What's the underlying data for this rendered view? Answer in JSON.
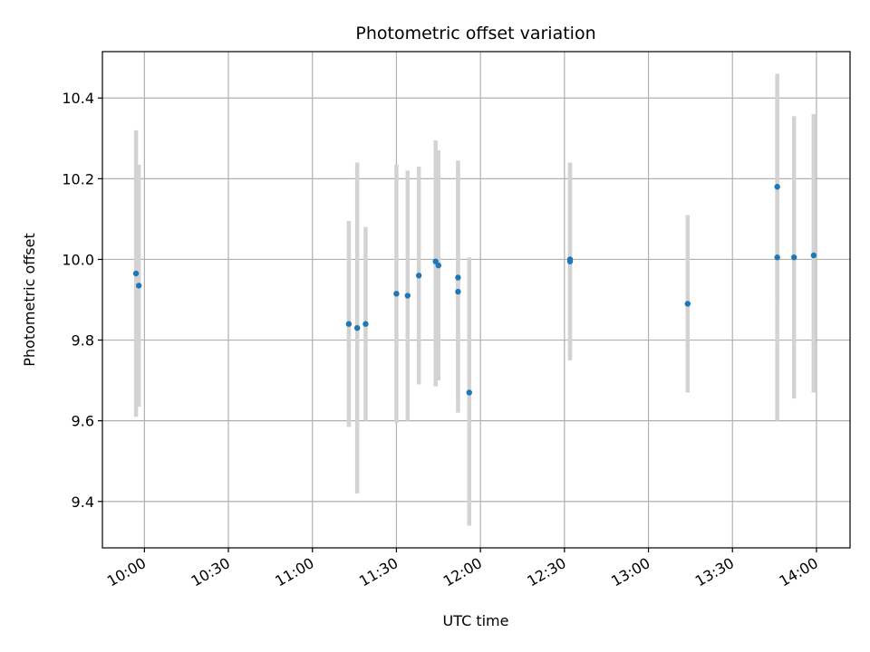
{
  "chart_data": {
    "type": "scatter",
    "title": "Photometric offset variation",
    "xlabel": "UTC time",
    "ylabel": "Photometric offset",
    "x_ticks": [
      "10:00",
      "10:30",
      "11:00",
      "11:30",
      "12:00",
      "12:30",
      "13:00",
      "13:30",
      "14:00"
    ],
    "y_ticks": [
      "9.4",
      "9.6",
      "9.8",
      "10.0",
      "10.2",
      "10.4"
    ],
    "xlim": [
      "09:45",
      "14:12"
    ],
    "ylim": [
      9.285,
      10.515
    ],
    "grid": true,
    "point_color": "#1f77b4",
    "errorbar_color": "#d3d3d3",
    "series": [
      {
        "points": [
          {
            "x": "09:57",
            "y": 9.965,
            "ylow": 9.61,
            "yhigh": 10.32
          },
          {
            "x": "09:58",
            "y": 9.935,
            "ylow": 9.635,
            "yhigh": 10.235
          },
          {
            "x": "11:13",
            "y": 9.84,
            "ylow": 9.585,
            "yhigh": 10.095
          },
          {
            "x": "11:16",
            "y": 9.83,
            "ylow": 9.42,
            "yhigh": 10.24
          },
          {
            "x": "11:19",
            "y": 9.84,
            "ylow": 9.6,
            "yhigh": 10.08
          },
          {
            "x": "11:30",
            "y": 9.915,
            "ylow": 9.595,
            "yhigh": 10.235
          },
          {
            "x": "11:34",
            "y": 9.91,
            "ylow": 9.6,
            "yhigh": 10.22
          },
          {
            "x": "11:38",
            "y": 9.96,
            "ylow": 9.69,
            "yhigh": 10.23
          },
          {
            "x": "11:44",
            "y": 9.995,
            "ylow": 9.685,
            "yhigh": 10.295
          },
          {
            "x": "11:45",
            "y": 9.985,
            "ylow": 9.7,
            "yhigh": 10.27
          },
          {
            "x": "11:52",
            "y": 9.955,
            "ylow": 9.665,
            "yhigh": 10.245
          },
          {
            "x": "11:52",
            "y": 9.92,
            "ylow": 9.62,
            "yhigh": 10.225
          },
          {
            "x": "11:56",
            "y": 9.67,
            "ylow": 9.34,
            "yhigh": 10.005
          },
          {
            "x": "12:32",
            "y": 10.0,
            "ylow": 9.76,
            "yhigh": 10.24
          },
          {
            "x": "12:32",
            "y": 9.995,
            "ylow": 9.75,
            "yhigh": 10.235
          },
          {
            "x": "13:14",
            "y": 9.89,
            "ylow": 9.67,
            "yhigh": 10.11
          },
          {
            "x": "13:46",
            "y": 10.005,
            "ylow": 9.6,
            "yhigh": 10.41
          },
          {
            "x": "13:46",
            "y": 10.18,
            "ylow": 9.905,
            "yhigh": 10.46
          },
          {
            "x": "13:52",
            "y": 10.005,
            "ylow": 9.655,
            "yhigh": 10.355
          },
          {
            "x": "13:59",
            "y": 10.01,
            "ylow": 9.67,
            "yhigh": 10.36
          }
        ]
      }
    ]
  }
}
